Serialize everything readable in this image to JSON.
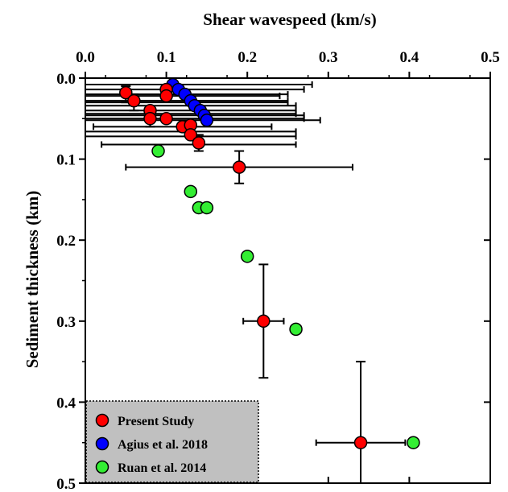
{
  "chart_data": {
    "type": "scatter",
    "xlabel": "Shear wavespeed (km/s)",
    "ylabel": "Sediment thickness (km)",
    "xlim": [
      0,
      0.5
    ],
    "ylim": [
      0,
      0.5
    ],
    "x_axis_position": "top",
    "y_axis_inverted": true,
    "grid": false,
    "x_ticks": [
      "0.0",
      "0.1",
      "0.2",
      "0.3",
      "0.4",
      "0.5"
    ],
    "y_ticks": [
      "0.0",
      "0.1",
      "0.2",
      "0.3",
      "0.4",
      "0.5"
    ],
    "legend_position": "bottom-left",
    "series": [
      {
        "name": "Agius et al. 2018",
        "color": "#0000ff",
        "points": [
          {
            "x": 0.108,
            "y": 0.008,
            "xerr": [
              0.0,
              0.28
            ]
          },
          {
            "x": 0.115,
            "y": 0.014,
            "xerr": [
              0.0,
              0.27
            ]
          },
          {
            "x": 0.123,
            "y": 0.02,
            "xerr": [
              0.0,
              0.25
            ]
          },
          {
            "x": 0.13,
            "y": 0.028,
            "xerr": [
              0.0,
              0.25
            ]
          },
          {
            "x": 0.135,
            "y": 0.034,
            "xerr": [
              0.0,
              0.26
            ]
          },
          {
            "x": 0.142,
            "y": 0.04,
            "xerr": [
              0.0,
              0.26
            ]
          },
          {
            "x": 0.147,
            "y": 0.046,
            "xerr": [
              0.0,
              0.27
            ]
          },
          {
            "x": 0.15,
            "y": 0.052,
            "xerr": [
              0.0,
              0.29
            ]
          }
        ]
      },
      {
        "name": "Present Study",
        "color": "#ff0000",
        "points": [
          {
            "x": 0.05,
            "y": 0.018,
            "yerr": [
              0.01,
              0.03
            ]
          },
          {
            "x": 0.06,
            "y": 0.028,
            "yerr": [
              0.02,
              0.04
            ]
          },
          {
            "x": 0.1,
            "y": 0.014
          },
          {
            "x": 0.1,
            "y": 0.022
          },
          {
            "x": 0.08,
            "y": 0.04
          },
          {
            "x": 0.08,
            "y": 0.05,
            "yerr": [
              0.04,
              0.06
            ]
          },
          {
            "x": 0.1,
            "y": 0.05
          },
          {
            "x": 0.12,
            "y": 0.06
          },
          {
            "x": 0.13,
            "y": 0.058
          },
          {
            "x": 0.13,
            "y": 0.07
          },
          {
            "x": 0.14,
            "y": 0.08,
            "yerr": [
              0.07,
              0.09
            ]
          },
          {
            "x": 0.19,
            "y": 0.11,
            "xerr": [
              0.05,
              0.33
            ],
            "yerr": [
              0.09,
              0.13
            ]
          },
          {
            "x": 0.22,
            "y": 0.3,
            "xerr": [
              0.195,
              0.245
            ],
            "yerr": [
              0.23,
              0.37
            ]
          },
          {
            "x": 0.34,
            "y": 0.45,
            "xerr": [
              0.285,
              0.395
            ],
            "yerr": [
              0.35,
              0.55
            ]
          }
        ]
      },
      {
        "name": "Ruan et al. 2014",
        "color": "#33ee33",
        "points": [
          {
            "x": 0.09,
            "y": 0.09
          },
          {
            "x": 0.13,
            "y": 0.14
          },
          {
            "x": 0.14,
            "y": 0.16
          },
          {
            "x": 0.15,
            "y": 0.16
          },
          {
            "x": 0.2,
            "y": 0.22
          },
          {
            "x": 0.26,
            "y": 0.31
          },
          {
            "x": 0.405,
            "y": 0.45
          }
        ]
      }
    ],
    "extra_error_bars": [
      {
        "y": 0.022,
        "x": [
          0.0,
          0.24
        ]
      },
      {
        "y": 0.03,
        "x": [
          0.0,
          0.25
        ]
      },
      {
        "y": 0.044,
        "x": [
          0.0,
          0.26
        ]
      },
      {
        "y": 0.05,
        "x": [
          0.0,
          0.27
        ]
      },
      {
        "y": 0.06,
        "x": [
          0.01,
          0.23
        ]
      },
      {
        "y": 0.066,
        "x": [
          0.0,
          0.26
        ]
      },
      {
        "y": 0.072,
        "x": [
          0.0,
          0.26
        ]
      },
      {
        "y": 0.082,
        "x": [
          0.02,
          0.26
        ]
      }
    ],
    "legend": [
      {
        "label": "Present Study",
        "color": "#ff0000"
      },
      {
        "label": "Agius et al.  2018",
        "color": "#0000ff"
      },
      {
        "label": "Ruan et al.  2014",
        "color": "#33ee33"
      }
    ]
  }
}
